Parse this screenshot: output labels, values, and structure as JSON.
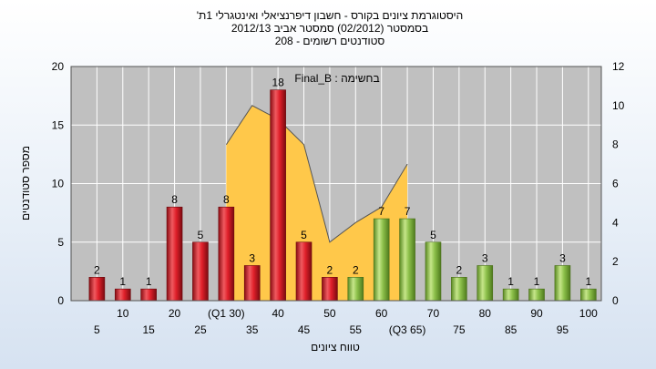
{
  "chart_data": {
    "type": "bar",
    "title_lines": [
      "היסטוגרמת ציונים בקורס - חשבון דיפרנציאלי ואינטגרלי 1ת'",
      "בסמסטר  (02/2012)  סמסטר אביב 2012/13",
      "סטודנטים רשומים - 208"
    ],
    "ylabel": "מספר סטודנטים",
    "xlabel": "טווח ציונים",
    "annotation": "Final_B : בחשימה",
    "ylim_left": [
      0,
      20
    ],
    "yticks_left": [
      0,
      5,
      10,
      15,
      20
    ],
    "ylim_right": [
      0,
      12
    ],
    "yticks_right": [
      0,
      2,
      4,
      6,
      8,
      10,
      12
    ],
    "grid": true,
    "categories": [
      "5",
      "10",
      "15",
      "20",
      "25",
      "(Q1 30)",
      "35",
      "40",
      "45",
      "50",
      "55",
      "60",
      "(Q3 65)",
      "70",
      "75",
      "80",
      "85",
      "90",
      "95",
      "100"
    ],
    "values": [
      2,
      1,
      1,
      8,
      5,
      8,
      3,
      18,
      5,
      2,
      2,
      7,
      7,
      5,
      2,
      3,
      1,
      1,
      3,
      1
    ],
    "bar_colors": [
      "red",
      "red",
      "red",
      "red",
      "red",
      "red",
      "red",
      "red",
      "red",
      "red",
      "green",
      "green",
      "green",
      "green",
      "green",
      "green",
      "green",
      "green",
      "green",
      "green"
    ],
    "area_series": {
      "axis": "right",
      "points": [
        {
          "x": "(Q1 30)",
          "y": 0
        },
        {
          "x": "(Q1 30)",
          "y": 8
        },
        {
          "x": "35",
          "y": 10
        },
        {
          "x": "40",
          "y": 9.3
        },
        {
          "x": "45",
          "y": 8
        },
        {
          "x": "50",
          "y": 3
        },
        {
          "x": "55",
          "y": 4
        },
        {
          "x": "60",
          "y": 4.8
        },
        {
          "x": "(Q3 65)",
          "y": 7
        },
        {
          "x": "(Q3 65)",
          "y": 0
        }
      ]
    },
    "colors": {
      "red_bar": "#e0202a",
      "green_bar": "#8cc04a",
      "area": "#ffc84a",
      "plot_bg": "#c0c0c0",
      "grid": "#ffffff"
    }
  }
}
